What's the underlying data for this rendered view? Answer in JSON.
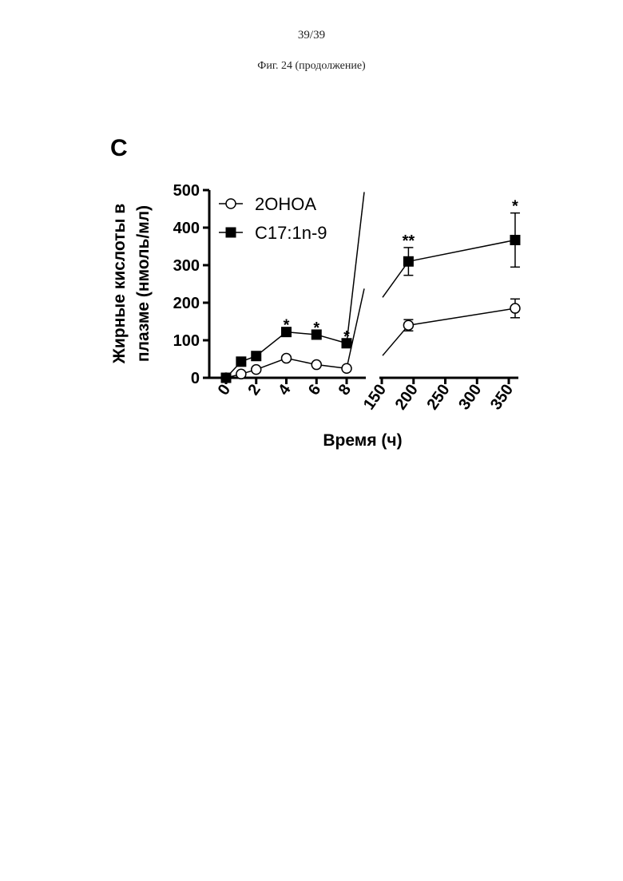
{
  "page": {
    "number": "39/39",
    "caption": "Фиг. 24 (продолжение)"
  },
  "chart_data": {
    "type": "line",
    "panel_label": "C",
    "ylabel_line1": "Жирные кислоты в",
    "ylabel_line2": "плазме (нмоль/мл)",
    "xlabel": "Время (ч)",
    "ylim": [
      0,
      500
    ],
    "y_ticks": [
      0,
      100,
      200,
      300,
      400,
      500
    ],
    "x_axis_segments": [
      {
        "range": [
          0,
          8
        ],
        "ticks": [
          0,
          2,
          4,
          6,
          8
        ]
      },
      {
        "range": [
          150,
          360
        ],
        "ticks": [
          150,
          200,
          250,
          300,
          350
        ]
      }
    ],
    "legend_position": "top-left",
    "series": [
      {
        "name": "2OHOA",
        "marker": "open-circle",
        "segments": [
          {
            "x": [
              0,
              1,
              2,
              4,
              6,
              8
            ],
            "y": [
              0,
              10,
              22,
              52,
              35,
              25
            ],
            "err": [
              0,
              0,
              0,
              0,
              0,
              0
            ]
          },
          {
            "x": [
              192,
              360
            ],
            "y": [
              140,
              185
            ],
            "err": [
              15,
              25
            ]
          }
        ]
      },
      {
        "name": "C17:1n-9",
        "marker": "filled-square",
        "segments": [
          {
            "x": [
              0,
              1,
              2,
              4,
              6,
              8
            ],
            "y": [
              0,
              43,
              58,
              122,
              115,
              92
            ],
            "err": [
              0,
              0,
              0,
              0,
              0,
              0
            ]
          },
          {
            "x": [
              192,
              360
            ],
            "y": [
              310,
              367
            ],
            "err": [
              37,
              72
            ]
          }
        ]
      }
    ],
    "annotations": [
      {
        "x": 4,
        "y": 122,
        "text": "*"
      },
      {
        "x": 6,
        "y": 115,
        "text": "*"
      },
      {
        "x": 8,
        "y": 92,
        "text": "*"
      },
      {
        "x": 192,
        "y": 347,
        "text": "**"
      },
      {
        "x": 360,
        "y": 439,
        "text": "*"
      }
    ]
  }
}
